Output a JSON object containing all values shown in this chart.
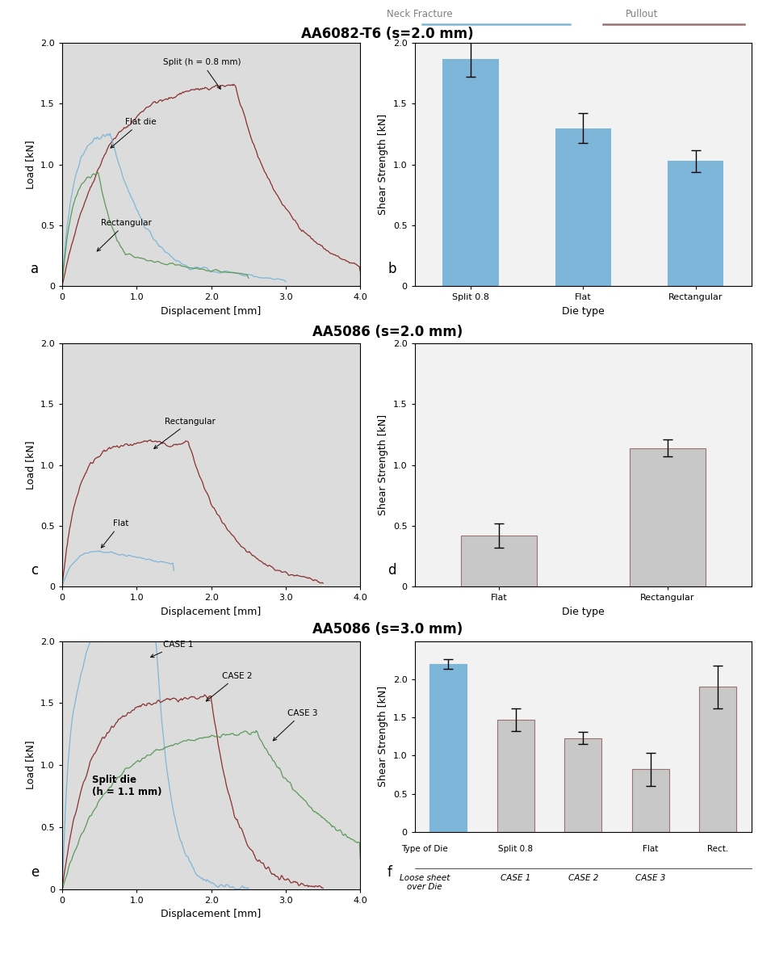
{
  "title_row1": "AA6082-T6 (s=2.0 mm)",
  "title_row2": "AA5086 (s=2.0 mm)",
  "title_row3": "AA5086 (s=3.0 mm)",
  "legend_neck": "Neck Fracture",
  "legend_pullout": "Pullout",
  "blue_color": "#7EB6D9",
  "darkred_color": "#8B3030",
  "green_color": "#5A9A5A",
  "gray_bar_color": "#C8C8C8",
  "gray_bar_edge": "#9B7070",
  "bar_a_values": [
    1.87,
    1.3,
    1.03
  ],
  "bar_a_errors": [
    0.15,
    0.12,
    0.09
  ],
  "bar_a_labels": [
    "Split 0.8",
    "Flat",
    "Rectangular"
  ],
  "bar_b_values": [
    0.42,
    1.14
  ],
  "bar_b_errors": [
    0.1,
    0.07
  ],
  "bar_b_labels": [
    "Flat",
    "Rectangular"
  ],
  "bar_f_values": [
    2.2,
    1.47,
    1.23,
    0.82,
    1.9
  ],
  "bar_f_errors": [
    0.06,
    0.15,
    0.08,
    0.22,
    0.28
  ],
  "bar_f_colors": [
    "#7EB6D9",
    "#C8C8C8",
    "#C8C8C8",
    "#C8C8C8",
    "#C8C8C8"
  ],
  "bar_f_edges": [
    "#7EB6D9",
    "#9B7070",
    "#9B7070",
    "#9B7070",
    "#9B7070"
  ],
  "subplot_bg_line": "#DCDCDC",
  "subplot_bg_bar": "#F2F2F2"
}
